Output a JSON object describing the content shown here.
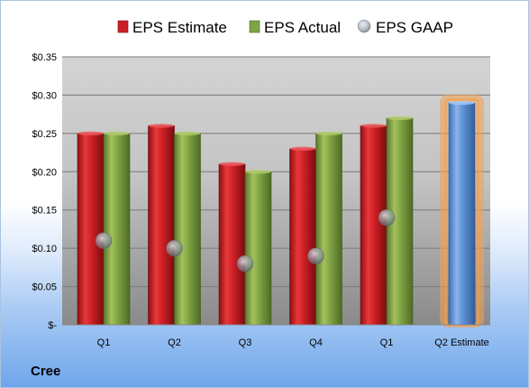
{
  "company": "Cree",
  "legend": [
    {
      "label": "EPS Estimate",
      "color": "#cc1f24"
    },
    {
      "label": "EPS Actual",
      "color": "#80a344"
    },
    {
      "label": "EPS GAAP",
      "color": "#9fb0c3"
    }
  ],
  "chart_data": {
    "type": "bar",
    "categories": [
      "Q1",
      "Q2",
      "Q3",
      "Q4",
      "Q1",
      "Q2 Estimate"
    ],
    "series": [
      {
        "name": "EPS Estimate",
        "values": [
          0.25,
          0.26,
          0.21,
          0.23,
          0.26,
          null
        ]
      },
      {
        "name": "EPS Actual",
        "values": [
          0.25,
          0.25,
          0.2,
          0.25,
          0.27,
          null
        ]
      },
      {
        "name": "EPS GAAP",
        "values": [
          0.11,
          0.1,
          0.08,
          0.09,
          0.14,
          null
        ]
      }
    ],
    "forecast": {
      "category": "Q2 Estimate",
      "value": 0.29,
      "color": "#5b8fd4",
      "glow": "#f5a04a"
    },
    "ylim": [
      0,
      0.35
    ],
    "yticks": [
      0,
      0.05,
      0.1,
      0.15,
      0.2,
      0.25,
      0.3,
      0.35
    ],
    "ytick_labels": [
      "$-",
      "$0.05",
      "$0.10",
      "$0.15",
      "$0.20",
      "$0.25",
      "$0.30",
      "$0.35"
    ],
    "grid": true,
    "legend_position": "top"
  }
}
